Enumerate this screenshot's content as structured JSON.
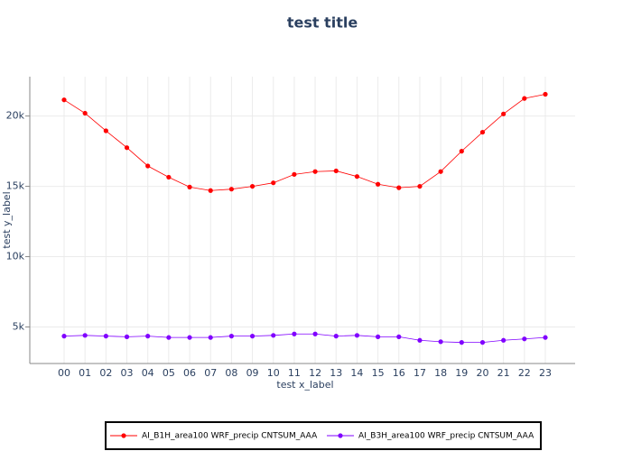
{
  "chart_data": {
    "type": "line",
    "title": "test title",
    "x_label": "test x_label",
    "y_label": "test y_label",
    "categories": [
      "00",
      "01",
      "02",
      "03",
      "04",
      "05",
      "06",
      "07",
      "08",
      "09",
      "10",
      "11",
      "12",
      "13",
      "14",
      "15",
      "16",
      "17",
      "18",
      "19",
      "20",
      "21",
      "22",
      "23"
    ],
    "series": [
      {
        "name": "AI_B1H_area100 WRF_precip CNTSUM_AAA",
        "color": "#ff0000",
        "values": [
          21150,
          20200,
          18950,
          17750,
          16450,
          15650,
          14950,
          14700,
          14800,
          15000,
          15250,
          15850,
          16050,
          16100,
          15700,
          15150,
          14900,
          15000,
          16050,
          17500,
          18850,
          20150,
          21250,
          21550
        ]
      },
      {
        "name": "AI_B3H_area100 WRF_precip CNTSUM_AAA",
        "color": "#8000ff",
        "values": [
          4350,
          4400,
          4350,
          4300,
          4350,
          4250,
          4250,
          4250,
          4350,
          4350,
          4400,
          4500,
          4500,
          4350,
          4400,
          4300,
          4300,
          4050,
          3950,
          3900,
          3900,
          4050,
          4150,
          4250
        ]
      }
    ],
    "ylim": [
      2400,
      22800
    ],
    "yticks": [
      {
        "value": 5000,
        "label": "5k"
      },
      {
        "value": 10000,
        "label": "10k"
      },
      {
        "value": 15000,
        "label": "15k"
      },
      {
        "value": 20000,
        "label": "20k"
      }
    ],
    "grid": true,
    "legend": "bottom"
  }
}
